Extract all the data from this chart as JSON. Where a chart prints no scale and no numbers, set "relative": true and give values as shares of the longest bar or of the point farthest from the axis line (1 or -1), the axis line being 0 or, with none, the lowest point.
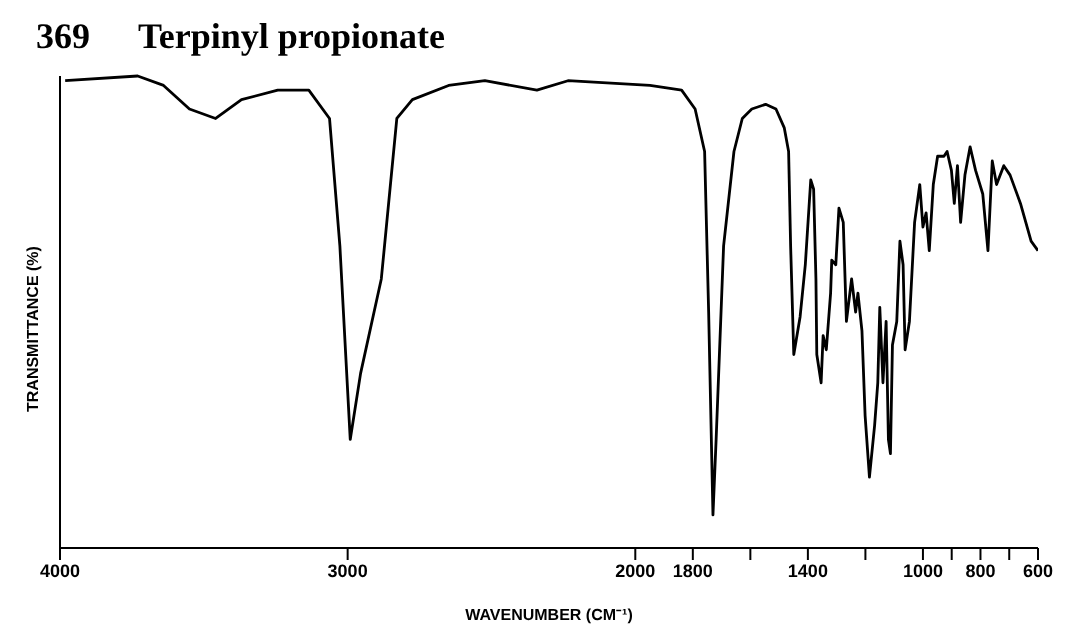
{
  "chart_data": {
    "type": "line",
    "title": "Terpinyl propionate",
    "annotations": [
      "369"
    ],
    "xlabel": "WAVENUMBER (CM⁻¹)",
    "ylabel": "TRANSMITTANCE (%)",
    "relative": true,
    "xlim": [
      4000,
      600
    ],
    "xticks": [
      4000,
      3000,
      2000,
      1800,
      {
        "value": 1600,
        "label": null
      },
      1400,
      {
        "value": 1200,
        "label": null
      },
      1000,
      {
        "value": 900,
        "label": null
      },
      800,
      {
        "value": 700,
        "label": null
      },
      600
    ],
    "grid": false,
    "legend": false,
    "marker": "none",
    "line_style": "solid",
    "series": [
      {
        "color": "#000000",
        "x": [
          3982,
          3730,
          3640,
          3550,
          3459,
          3369,
          3243,
          3135,
          3063,
          3027,
          2991,
          2955,
          2883,
          2829,
          2775,
          2649,
          2523,
          2342,
          2234,
          1949,
          1839,
          1792,
          1759,
          1745,
          1730,
          1719,
          1693,
          1657,
          1628,
          1595,
          1547,
          1511,
          1482,
          1467,
          1460,
          1449,
          1427,
          1409,
          1390,
          1380,
          1372,
          1369,
          1354,
          1347,
          1336,
          1321,
          1317,
          1303,
          1292,
          1277,
          1266,
          1248,
          1234,
          1226,
          1212,
          1201,
          1186,
          1168,
          1157,
          1150,
          1139,
          1128,
          1120,
          1113,
          1106,
          1091,
          1080,
          1069,
          1062,
          1047,
          1029,
          1011,
          1000,
          989,
          978,
          964,
          949,
          927,
          916,
          901,
          891,
          880,
          869,
          854,
          836,
          817,
          792,
          774,
          759,
          744,
          719,
          697,
          661,
          624,
          600
        ],
        "values": [
          0.99,
          1.0,
          0.98,
          0.93,
          0.91,
          0.95,
          0.97,
          0.97,
          0.91,
          0.64,
          0.23,
          0.37,
          0.57,
          0.91,
          0.95,
          0.98,
          0.99,
          0.97,
          0.99,
          0.98,
          0.97,
          0.93,
          0.84,
          0.5,
          0.07,
          0.23,
          0.64,
          0.84,
          0.91,
          0.93,
          0.94,
          0.93,
          0.89,
          0.84,
          0.64,
          0.41,
          0.49,
          0.6,
          0.78,
          0.76,
          0.57,
          0.41,
          0.35,
          0.45,
          0.42,
          0.54,
          0.61,
          0.6,
          0.72,
          0.69,
          0.48,
          0.57,
          0.5,
          0.54,
          0.46,
          0.28,
          0.15,
          0.26,
          0.35,
          0.51,
          0.35,
          0.48,
          0.23,
          0.2,
          0.43,
          0.48,
          0.65,
          0.6,
          0.42,
          0.48,
          0.69,
          0.77,
          0.68,
          0.71,
          0.63,
          0.77,
          0.83,
          0.83,
          0.84,
          0.8,
          0.73,
          0.81,
          0.69,
          0.79,
          0.85,
          0.8,
          0.75,
          0.63,
          0.82,
          0.77,
          0.81,
          0.79,
          0.73,
          0.65,
          0.63
        ]
      }
    ]
  }
}
